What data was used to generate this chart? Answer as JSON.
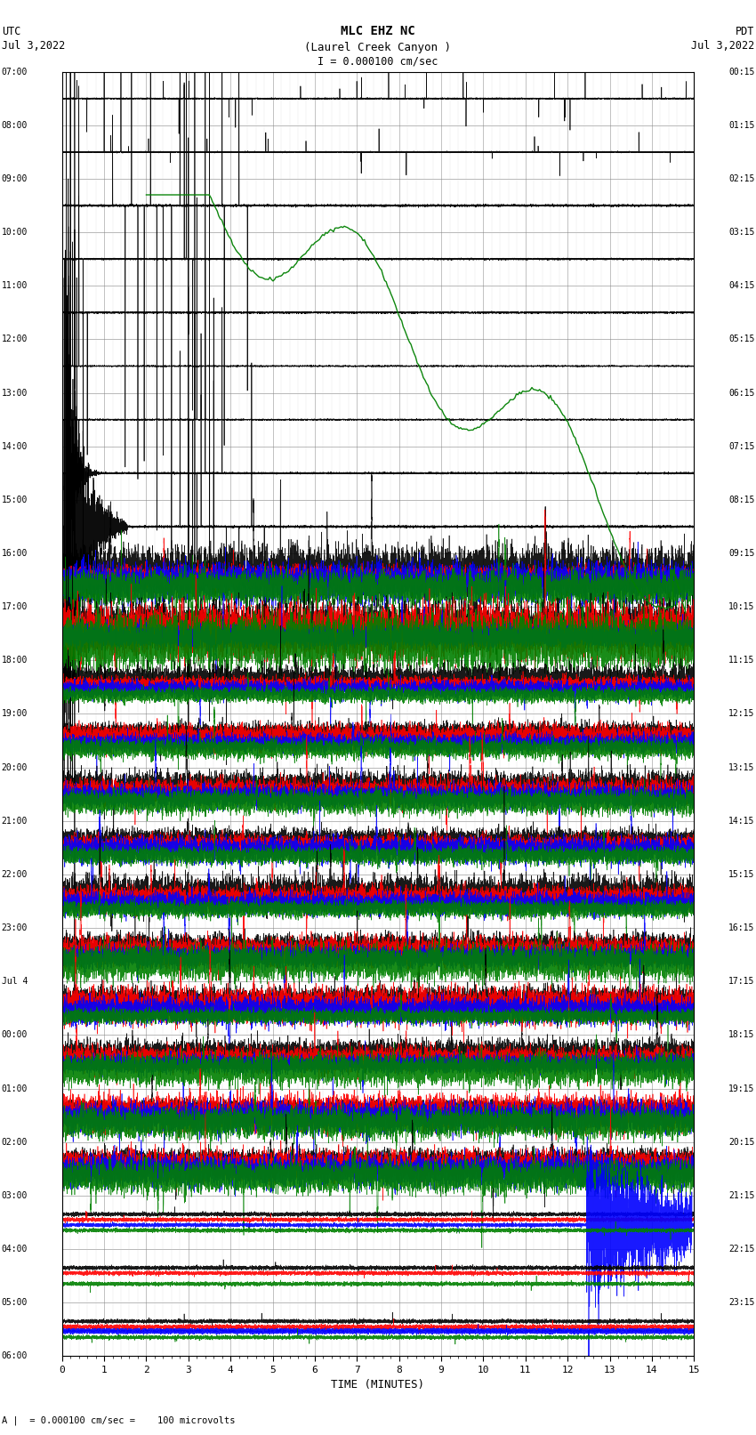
{
  "title_line1": "MLC EHZ NC",
  "title_line2": "(Laurel Creek Canyon )",
  "title_line3": "I = 0.000100 cm/sec",
  "left_label_top": "UTC",
  "left_label_date": "Jul 3,2022",
  "right_label_top": "PDT",
  "right_label_date": "Jul 3,2022",
  "xlabel": "TIME (MINUTES)",
  "bottom_note": "A |  = 0.000100 cm/sec =    100 microvolts",
  "x_ticks": [
    0,
    1,
    2,
    3,
    4,
    5,
    6,
    7,
    8,
    9,
    10,
    11,
    12,
    13,
    14,
    15
  ],
  "fig_width": 8.5,
  "fig_height": 16.13,
  "bg_color": "#ffffff",
  "grid_major_color": "#aaaaaa",
  "grid_minor_color": "#cccccc",
  "left_time_labels_utc": [
    "07:00",
    "08:00",
    "09:00",
    "10:00",
    "11:00",
    "12:00",
    "13:00",
    "14:00",
    "15:00",
    "16:00",
    "17:00",
    "18:00",
    "19:00",
    "20:00",
    "21:00",
    "22:00",
    "23:00",
    "Jul 4",
    "00:00",
    "01:00",
    "02:00",
    "03:00",
    "04:00",
    "05:00",
    "06:00"
  ],
  "right_time_labels_pdt": [
    "00:15",
    "01:15",
    "02:15",
    "03:15",
    "04:15",
    "05:15",
    "06:15",
    "07:15",
    "08:15",
    "09:15",
    "10:15",
    "11:15",
    "12:15",
    "13:15",
    "14:15",
    "15:15",
    "16:15",
    "17:15",
    "18:15",
    "19:15",
    "20:15",
    "21:15",
    "22:15",
    "23:15"
  ],
  "num_rows": 24,
  "seed": 42
}
